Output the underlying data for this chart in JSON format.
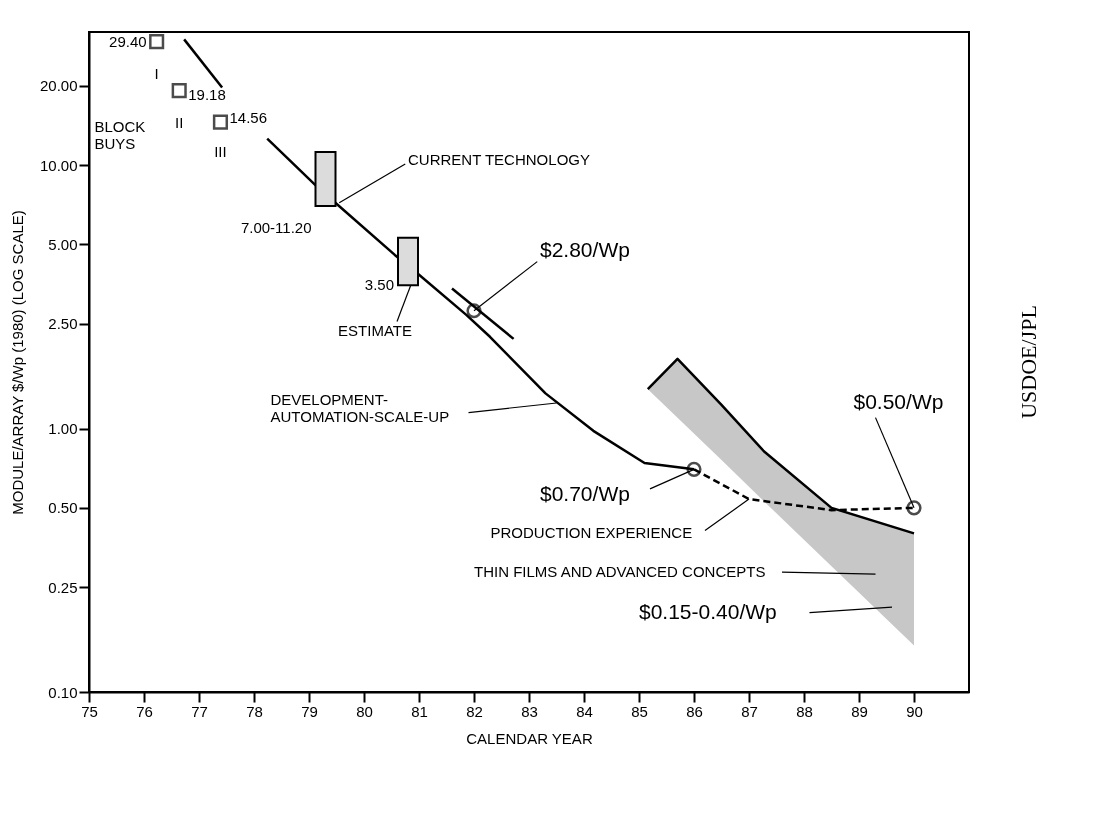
{
  "chart_data": {
    "type": "line",
    "xlabel": "CALENDAR YEAR",
    "ylabel": "MODULE/ARRAY $/Wp (1980) (LOG SCALE)",
    "log": "y",
    "xlim": [
      75,
      91
    ],
    "xticks": [
      75,
      76,
      77,
      78,
      79,
      80,
      81,
      82,
      83,
      84,
      85,
      86,
      87,
      88,
      89,
      90
    ],
    "ylim": [
      0.1,
      32
    ],
    "yticks": [
      {
        "value": 0.1,
        "label": "0.10"
      },
      {
        "value": 0.25,
        "label": "0.25"
      },
      {
        "value": 0.5,
        "label": "0.50"
      },
      {
        "value": 1,
        "label": "1.00"
      },
      {
        "value": 2.5,
        "label": "2.50"
      },
      {
        "value": 5,
        "label": "5.00"
      },
      {
        "value": 10,
        "label": "10.00"
      },
      {
        "value": 20,
        "label": "20.00"
      }
    ],
    "series": [
      {
        "color": "#000000",
        "line_style": "solid",
        "x": [
          85.16,
          85.7,
          86.5,
          87.27,
          88.5,
          90
        ],
        "values": [
          1.41,
          1.84,
          1.23,
          0.82,
          0.5,
          0.4
        ],
        "lower": [
          1.41,
          1.1,
          0.76,
          0.53,
          0.3,
          0.15
        ],
        "upper": [
          1.41,
          1.84,
          1.23,
          0.82,
          0.5,
          0.4
        ]
      },
      {
        "color": "#000000",
        "line_style": "solid",
        "x": [
          76.73,
          77.42
        ],
        "values": [
          30,
          19.7
        ]
      },
      {
        "color": "#000000",
        "line_style": "solid",
        "x": [
          78.24,
          79.14,
          79.52,
          80.56,
          80.99,
          81.86,
          82.29,
          83.3,
          84.17,
          85.1,
          86
        ],
        "values": [
          12.6,
          8.3,
          7.07,
          4.56,
          3.85,
          2.7,
          2.23,
          1.36,
          0.98,
          0.74,
          0.7
        ]
      },
      {
        "color": "#000000",
        "line_style": "dashed",
        "x": [
          86,
          87,
          88.5,
          90
        ],
        "values": [
          0.7,
          0.54,
          0.49,
          0.5
        ]
      },
      {
        "color": "#000000",
        "line_style": "solid",
        "x": [
          81.6,
          82.72
        ],
        "values": [
          3.4,
          2.19
        ]
      },
      {
        "type": "bar",
        "color": "#dcdcdc",
        "x": [
          79.3,
          80.8
        ],
        "base": [
          7.0,
          3.5
        ],
        "values": [
          4.2,
          1.8
        ]
      },
      {
        "type": "scatter",
        "color": "#000000",
        "marker": "square",
        "x": [
          76.23,
          76.64,
          77.39
        ],
        "values": [
          29.4,
          19.18,
          14.56
        ],
        "value_labels": [
          "29.40",
          "19.18",
          "14.56"
        ]
      },
      {
        "type": "scatter",
        "color": "#000000",
        "marker": "circle",
        "x": [
          82,
          86,
          90
        ],
        "values": [
          2.8,
          0.7,
          0.5
        ]
      }
    ],
    "annotations": [
      "BLOCK\nBUYS",
      {
        "text": "I",
        "x": 76.23,
        "y": 29.4
      },
      {
        "text": "II",
        "x": 76.64,
        "y": 19.18
      },
      {
        "text": "III",
        "x": 77.39,
        "y": 14.56
      },
      {
        "text": "CURRENT TECHNOLOGY",
        "x": 79.55,
        "y": 7.2
      },
      {
        "text": "ESTIMATE",
        "x": 80.85,
        "y": 3.5
      },
      {
        "text": "$2.80/Wp",
        "x": 82,
        "y": 2.8
      },
      {
        "text": "DEVELOPMENT-\nAUTOMATION-SCALE-UP",
        "x": 83.5,
        "y": 1.25
      },
      {
        "text": "$0.70/Wp",
        "x": 86,
        "y": 0.7
      },
      {
        "text": "PRODUCTION EXPERIENCE",
        "x": 87,
        "y": 0.54
      },
      "THIN FILMS AND ADVANCED CONCEPTS",
      "$0.15-0.40/Wp",
      {
        "text": "$0.50/Wp",
        "x": 90,
        "y": 0.5
      },
      {
        "text": "7.00-11.20",
        "x": 79.3,
        "y": 7.0
      },
      {
        "text": "3.50",
        "x": 80.8,
        "y": 3.5
      },
      "USDOE/JPL"
    ]
  }
}
